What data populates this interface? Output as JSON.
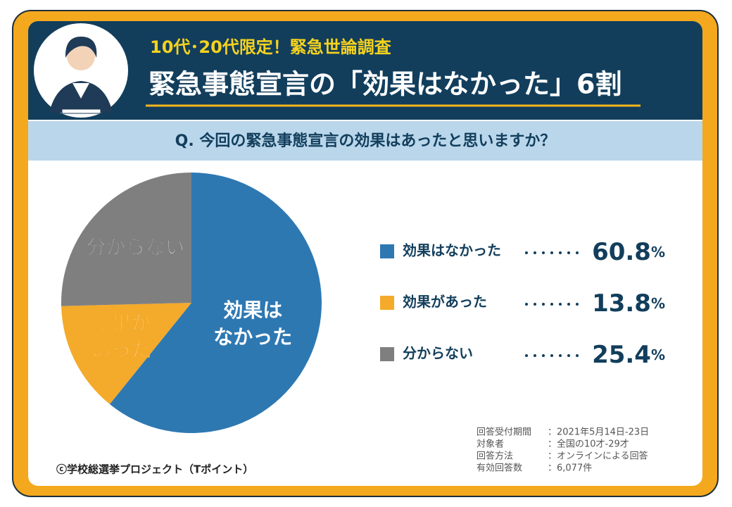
{
  "header": {
    "kicker": "10代･20代限定！緊急世論調査",
    "title": "緊急事態宣言の「効果はなかった」6割"
  },
  "question": "Q. 今回の緊急事態宣言の効果はあったと思いますか？",
  "chart_data": {
    "type": "pie",
    "categories": [
      "効果はなかった",
      "効果があった",
      "分からない"
    ],
    "slice_labels": [
      [
        "効果は",
        "なかった"
      ],
      [
        "効果が",
        "あった"
      ],
      [
        "分からない"
      ]
    ],
    "values": [
      60.8,
      13.8,
      25.4
    ],
    "value_unit": "%",
    "colors": [
      "#2e78b2",
      "#f4aa2a",
      "#7f7f7f"
    ]
  },
  "notes": {
    "rows": [
      [
        "回答受付期間",
        "：2021年5月14日-23日"
      ],
      [
        "対象者",
        "：全国の10才-29才"
      ],
      [
        "回答方法",
        "：オンラインによる回答"
      ],
      [
        "有効回答数",
        "：6,077件"
      ]
    ]
  },
  "credit": "ⓒ学校総選挙プロジェクト（Tポイント）"
}
